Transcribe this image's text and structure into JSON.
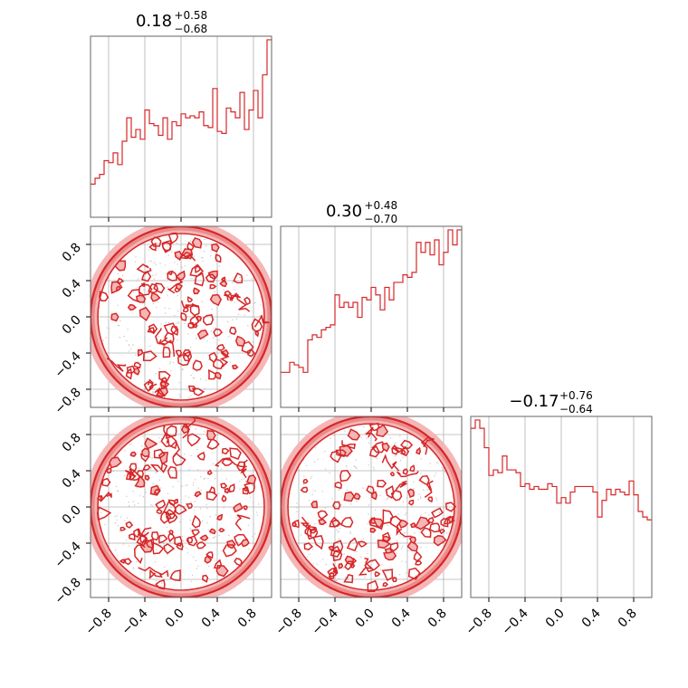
{
  "chart_data": {
    "type": "corner",
    "axis_range": [
      -1.0,
      1.0
    ],
    "tick_values": [
      -0.8,
      -0.4,
      0.0,
      0.4,
      0.8
    ],
    "tick_labels": [
      "−0.8",
      "−0.4",
      "0.0",
      "0.4",
      "0.8"
    ],
    "grid": true,
    "colors": {
      "line": "#d62728",
      "fill_light": "#f4b6b6",
      "fill_mid": "#ec8a8a",
      "dots": "#c9c9c9",
      "grid": "#b0b0b0",
      "frame": "#666666"
    },
    "marginals": [
      {
        "name": "param-1",
        "title": {
          "value": "0.18",
          "plus": "+0.58",
          "minus": "−0.68"
        },
        "bin_range": [
          -1.0,
          1.0
        ],
        "counts": [
          17,
          20,
          22,
          29,
          28,
          33,
          27,
          39,
          51,
          41,
          45,
          40,
          55,
          48,
          47,
          42,
          51,
          40,
          49,
          47,
          53,
          51,
          52,
          51,
          54,
          47,
          46,
          66,
          44,
          43,
          56,
          54,
          51,
          64,
          45,
          55,
          65,
          51,
          73,
          91
        ]
      },
      {
        "name": "param-2",
        "title": {
          "value": "0.30",
          "plus": "+0.48",
          "minus": "−0.70"
        },
        "bin_range": [
          -1.0,
          1.0
        ],
        "counts": [
          14,
          14,
          18,
          17,
          16,
          14,
          27,
          29,
          28,
          31,
          32,
          33,
          45,
          40,
          42,
          40,
          42,
          36,
          44,
          43,
          48,
          45,
          39,
          48,
          43,
          50,
          50,
          53,
          52,
          54,
          66,
          62,
          66,
          61,
          67,
          57,
          62,
          71,
          65,
          71
        ]
      },
      {
        "name": "param-3",
        "title": {
          "value": "−0.17",
          "plus": "+0.76",
          "minus": "−0.64"
        },
        "bin_range": [
          -1.0,
          1.0
        ],
        "counts": [
          61,
          64,
          61,
          54,
          44,
          46,
          45,
          51,
          46,
          46,
          45,
          40,
          41,
          39,
          40,
          39,
          39,
          41,
          40,
          34,
          36,
          34,
          38,
          40,
          40,
          40,
          40,
          38,
          29,
          35,
          39,
          37,
          39,
          38,
          37,
          42,
          37,
          31,
          29,
          28
        ]
      }
    ],
    "pairs": [
      {
        "name": "pair-2-vs-1",
        "row": 1,
        "col": 0,
        "support": "disk",
        "radius": 1.0
      },
      {
        "name": "pair-3-vs-1",
        "row": 2,
        "col": 0,
        "support": "disk",
        "radius": 1.0
      },
      {
        "name": "pair-3-vs-2",
        "row": 2,
        "col": 1,
        "support": "disk",
        "radius": 1.0
      }
    ]
  }
}
